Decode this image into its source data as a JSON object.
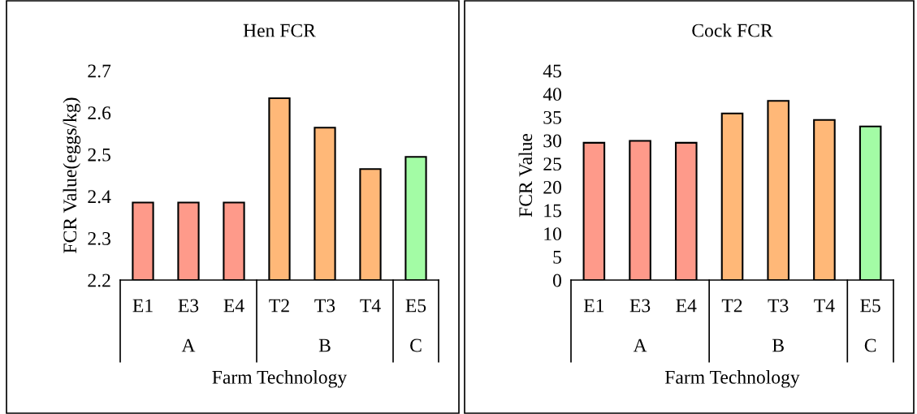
{
  "chart_data": [
    {
      "type": "bar",
      "title": "Hen FCR",
      "xlabel": "Farm Technology",
      "ylabel": "FCR Value(eggs/kg)",
      "categories": [
        "E1",
        "E3",
        "E4",
        "T2",
        "T3",
        "T4",
        "E5"
      ],
      "values": [
        2.385,
        2.385,
        2.385,
        2.634,
        2.564,
        2.465,
        2.494
      ],
      "colors": [
        "#fe9a8a",
        "#fe9a8a",
        "#fe9a8a",
        "#ffb878",
        "#ffb878",
        "#ffb878",
        "#a3fca5"
      ],
      "ylim": [
        2.2,
        2.7
      ],
      "yticks": [
        2.2,
        2.3,
        2.4,
        2.5,
        2.6,
        2.7
      ],
      "annotations": [
        "A",
        "B",
        "C"
      ]
    },
    {
      "type": "bar",
      "title": "Cock FCR",
      "xlabel": "Farm Technology",
      "ylabel": "FCR Value",
      "categories": [
        "E1",
        "E3",
        "E4",
        "T2",
        "T3",
        "T4",
        "E5"
      ],
      "values": [
        29.5,
        29.9,
        29.5,
        35.8,
        38.5,
        34.4,
        33.0
      ],
      "colors": [
        "#fe9a8a",
        "#fe9a8a",
        "#fe9a8a",
        "#ffb878",
        "#ffb878",
        "#ffb878",
        "#a3fca5"
      ],
      "ylim": [
        0,
        45
      ],
      "yticks": [
        0,
        5,
        10,
        15,
        20,
        25,
        30,
        35,
        40,
        45
      ],
      "annotations": [
        "A",
        "B",
        "C"
      ]
    }
  ]
}
